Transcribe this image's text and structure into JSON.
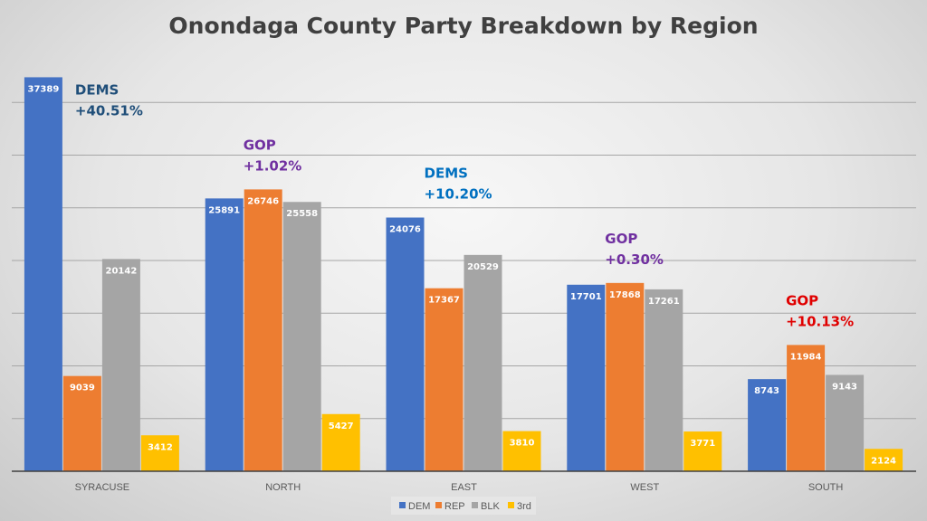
{
  "chart_data": {
    "type": "bar",
    "title": "Onondaga County Party Breakdown by Region",
    "xlabel": "",
    "ylabel": "",
    "ylim": [
      0,
      40000
    ],
    "grid": true,
    "grid_step": 5000,
    "legend_position": "bottom",
    "categories": [
      "SYRACUSE",
      "NORTH",
      "EAST",
      "WEST",
      "SOUTH"
    ],
    "series": [
      {
        "name": "DEM",
        "color": "#4472C4",
        "values": [
          37389,
          25891,
          24076,
          17701,
          8743
        ]
      },
      {
        "name": "REP",
        "color": "#ED7D31",
        "values": [
          9039,
          26746,
          17367,
          17868,
          11984
        ]
      },
      {
        "name": "BLK",
        "color": "#A5A5A5",
        "values": [
          20142,
          25558,
          20529,
          17261,
          9143
        ]
      },
      {
        "name": "3rd",
        "color": "#FFC000",
        "values": [
          3412,
          5427,
          3810,
          3771,
          2124
        ]
      }
    ],
    "annotations": [
      {
        "category": "SYRACUSE",
        "line1": "DEMS",
        "line2": "+40.51%",
        "color": "#1F4E79"
      },
      {
        "category": "NORTH",
        "line1": "GOP",
        "line2": "+1.02%",
        "color": "#7030A0"
      },
      {
        "category": "EAST",
        "line1": "DEMS",
        "line2": "+10.20%",
        "color": "#0070C0"
      },
      {
        "category": "WEST",
        "line1": "GOP",
        "line2": "+0.30%",
        "color": "#7030A0"
      },
      {
        "category": "SOUTH",
        "line1": "GOP",
        "line2": "+10.13%",
        "color": "#E00000"
      }
    ]
  }
}
